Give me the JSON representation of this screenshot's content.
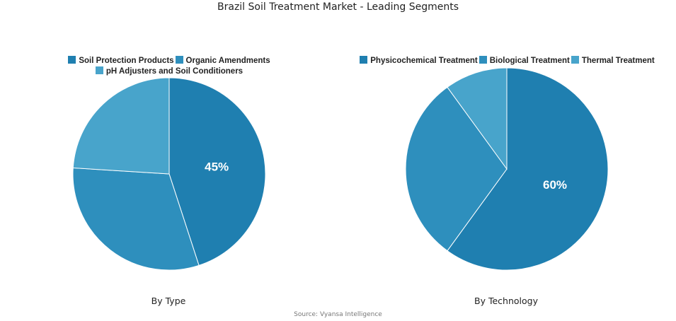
{
  "title": "Brazil Soil Treatment Market - Leading Segments",
  "source": "Source: Vyansa Intelligence",
  "chart_data": [
    {
      "type": "pie",
      "subtitle": "By Type",
      "categories": [
        "Soil Protection Products",
        "Organic Amendments",
        "pH Adjusters and Soil Conditioners"
      ],
      "values": [
        45,
        31,
        24
      ],
      "colors": [
        "#1f7fb0",
        "#2e8fbd",
        "#48a4cb"
      ],
      "data_labels": [
        "45%",
        "",
        ""
      ],
      "legend": "top"
    },
    {
      "type": "pie",
      "subtitle": "By Technology",
      "categories": [
        "Physicochemical Treatment",
        "Biological Treatment",
        "Thermal Treatment"
      ],
      "values": [
        60,
        30,
        10
      ],
      "colors": [
        "#1f7fb0",
        "#2e8fbd",
        "#48a4cb"
      ],
      "data_labels": [
        "60%",
        "",
        ""
      ],
      "legend": "top"
    }
  ]
}
